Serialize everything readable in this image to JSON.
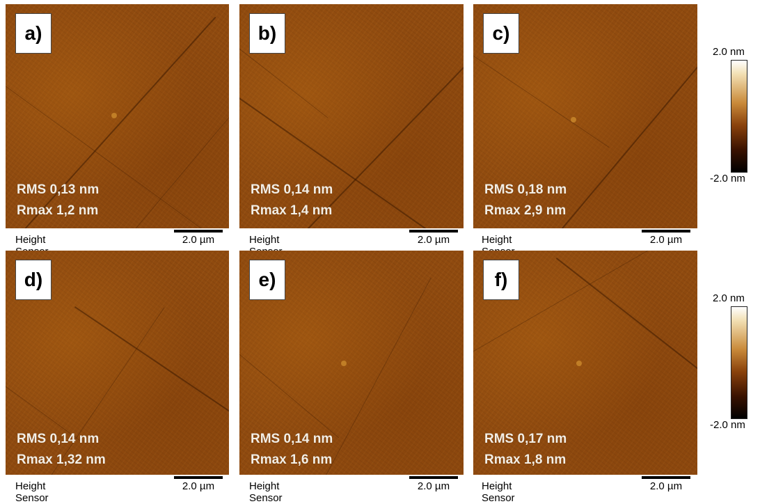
{
  "panels": [
    {
      "label": "a)",
      "rms": "RMS 0,13 nm",
      "rmax": "Rmax 1,2 nm",
      "caption": "Height Sensor",
      "scale": "2.0 µm"
    },
    {
      "label": "b)",
      "rms": "RMS 0,14 nm",
      "rmax": "Rmax 1,4 nm",
      "caption": "Height Sensor",
      "scale": "2.0 µm"
    },
    {
      "label": "c)",
      "rms": "RMS 0,18 nm",
      "rmax": "Rmax 2,9 nm",
      "caption": "Height Sensor",
      "scale": "2.0 µm"
    },
    {
      "label": "d)",
      "rms": "RMS 0,14 nm",
      "rmax": "Rmax 1,32 nm",
      "caption": "Height Sensor",
      "scale": "2.0 µm"
    },
    {
      "label": "e)",
      "rms": "RMS 0,14 nm",
      "rmax": "Rmax 1,6 nm",
      "caption": "Height Sensor",
      "scale": "2.0 µm"
    },
    {
      "label": "f)",
      "rms": "RMS 0,17 nm",
      "rmax": "Rmax 1,8 nm",
      "caption": "Height Sensor",
      "scale": "2.0 µm"
    }
  ],
  "colorbars": [
    {
      "max": "2.0 nm",
      "min": "-2.0 nm"
    },
    {
      "max": "2.0 nm",
      "min": "-2.0 nm"
    }
  ],
  "colors": {
    "afm_base": "#8f4a0f",
    "text_on_image": "#f4efe6",
    "colorbar_top": "#ffffff",
    "colorbar_bottom": "#000000"
  }
}
